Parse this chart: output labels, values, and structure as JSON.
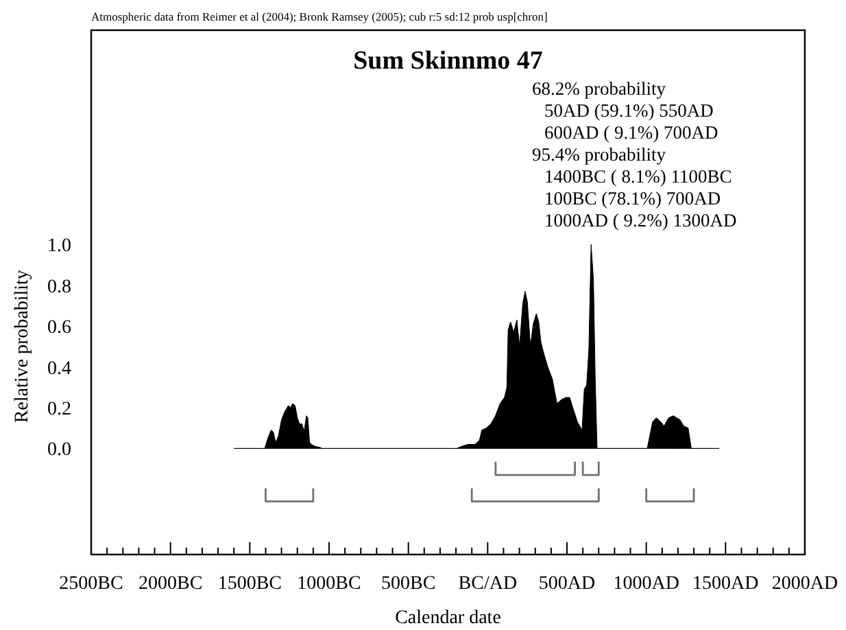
{
  "chart_data": {
    "type": "area",
    "title": "Sum Skinnmo 47",
    "xlabel": "Calendar date",
    "ylabel": "Relative probability",
    "annotations": [
      "Atmospheric data from Reimer et al (2004); Bronk Ramsey (2005); cub r:5 sd:12 prob usp[chron]",
      "68.2% probability",
      "50AD (59.1%) 550AD",
      "600AD ( 9.1%) 700AD",
      "95.4% probability",
      "1400BC ( 8.1%) 1100BC",
      "100BC (78.1%) 700AD",
      "1000AD ( 9.2%) 1300AD"
    ],
    "xlim": [
      -2500,
      2000
    ],
    "ylim": [
      -0.52,
      2.05
    ],
    "xticks": [
      {
        "value": -2500,
        "label": "2500BC"
      },
      {
        "value": -2400,
        "label": null
      },
      {
        "value": -2300,
        "label": null
      },
      {
        "value": -2200,
        "label": null
      },
      {
        "value": -2100,
        "label": null
      },
      {
        "value": -2000,
        "label": "2000BC"
      },
      {
        "value": -1900,
        "label": null
      },
      {
        "value": -1800,
        "label": null
      },
      {
        "value": -1700,
        "label": null
      },
      {
        "value": -1600,
        "label": null
      },
      {
        "value": -1500,
        "label": "1500BC"
      },
      {
        "value": -1400,
        "label": null
      },
      {
        "value": -1300,
        "label": null
      },
      {
        "value": -1200,
        "label": null
      },
      {
        "value": -1100,
        "label": null
      },
      {
        "value": -1000,
        "label": "1000BC"
      },
      {
        "value": -900,
        "label": null
      },
      {
        "value": -800,
        "label": null
      },
      {
        "value": -700,
        "label": null
      },
      {
        "value": -600,
        "label": null
      },
      {
        "value": -500,
        "label": "500BC"
      },
      {
        "value": -400,
        "label": null
      },
      {
        "value": -300,
        "label": null
      },
      {
        "value": -200,
        "label": null
      },
      {
        "value": -100,
        "label": null
      },
      {
        "value": 0,
        "label": "BC/AD"
      },
      {
        "value": 100,
        "label": null
      },
      {
        "value": 200,
        "label": null
      },
      {
        "value": 300,
        "label": null
      },
      {
        "value": 400,
        "label": null
      },
      {
        "value": 500,
        "label": "500AD"
      },
      {
        "value": 600,
        "label": null
      },
      {
        "value": 700,
        "label": null
      },
      {
        "value": 800,
        "label": null
      },
      {
        "value": 900,
        "label": null
      },
      {
        "value": 1000,
        "label": "1000AD"
      },
      {
        "value": 1100,
        "label": null
      },
      {
        "value": 1200,
        "label": null
      },
      {
        "value": 1300,
        "label": null
      },
      {
        "value": 1400,
        "label": null
      },
      {
        "value": 1500,
        "label": "1500AD"
      },
      {
        "value": 1600,
        "label": null
      },
      {
        "value": 1700,
        "label": null
      },
      {
        "value": 1800,
        "label": null
      },
      {
        "value": 1900,
        "label": null
      },
      {
        "value": 2000,
        "label": "2000AD"
      }
    ],
    "yticks": [
      {
        "value": 0,
        "label": "0.0"
      },
      {
        "value": 0.2,
        "label": "0.2"
      },
      {
        "value": 0.4,
        "label": "0.4"
      },
      {
        "value": 0.6,
        "label": "0.6"
      },
      {
        "value": 0.8,
        "label": "0.8"
      },
      {
        "value": 1,
        "label": "1.0"
      }
    ],
    "series": [
      {
        "color": "#000000",
        "x": [
          -1600,
          -1406,
          -1386,
          -1366,
          -1351,
          -1337,
          -1320,
          -1300,
          -1280,
          -1257,
          -1243,
          -1229,
          -1214,
          -1200,
          -1186,
          -1171,
          -1157,
          -1143,
          -1134,
          -1123,
          -1109,
          -1086,
          -1057,
          -1043,
          -195,
          -167,
          -124,
          -80,
          -52,
          -37,
          -9,
          20,
          49,
          78,
          106,
          121,
          129,
          144,
          164,
          184,
          201,
          221,
          236,
          250,
          270,
          287,
          307,
          322,
          336,
          356,
          379,
          408,
          437,
          466,
          494,
          517,
          537,
          566,
          595,
          609,
          624,
          638,
          652,
          667,
          678,
          690,
          1006,
          1040,
          1063,
          1092,
          1112,
          1141,
          1170,
          1213,
          1236,
          1264,
          1284,
          1460
        ],
        "values": [
          0,
          0,
          0.05,
          0.09,
          0.08,
          0.03,
          0.06,
          0.14,
          0.18,
          0.21,
          0.2,
          0.22,
          0.21,
          0.15,
          0.12,
          0.12,
          0.085,
          0.16,
          0.15,
          0.03,
          0.018,
          0.01,
          0.005,
          0,
          0,
          0.01,
          0.02,
          0.02,
          0.04,
          0.09,
          0.1,
          0.12,
          0.16,
          0.22,
          0.25,
          0.3,
          0.58,
          0.62,
          0.57,
          0.63,
          0.5,
          0.71,
          0.77,
          0.72,
          0.5,
          0.61,
          0.66,
          0.62,
          0.52,
          0.46,
          0.4,
          0.34,
          0.22,
          0.24,
          0.25,
          0.25,
          0.2,
          0.13,
          0.09,
          0.29,
          0.31,
          0.49,
          1,
          0.83,
          0.35,
          0,
          0,
          0.13,
          0.15,
          0.13,
          0.11,
          0.15,
          0.16,
          0.14,
          0.11,
          0.1,
          0,
          0
        ]
      },
      {
        "type": "line",
        "color": "#707070",
        "x": [
          50,
          50,
          550,
          550
        ],
        "values": [
          -0.07,
          -0.13,
          -0.13,
          -0.07
        ]
      },
      {
        "type": "line",
        "color": "#707070",
        "x": [
          600,
          600,
          700,
          700
        ],
        "values": [
          -0.07,
          -0.13,
          -0.13,
          -0.07
        ]
      },
      {
        "type": "line",
        "color": "#707070",
        "x": [
          -1400,
          -1400,
          -1100,
          -1100
        ],
        "values": [
          -0.2,
          -0.26,
          -0.26,
          -0.2
        ]
      },
      {
        "type": "line",
        "color": "#707070",
        "x": [
          -100,
          -100,
          700,
          700
        ],
        "values": [
          -0.2,
          -0.26,
          -0.26,
          -0.2
        ]
      },
      {
        "type": "line",
        "color": "#707070",
        "x": [
          1000,
          1000,
          1300,
          1300
        ],
        "values": [
          -0.2,
          -0.26,
          -0.26,
          -0.2
        ]
      }
    ]
  }
}
